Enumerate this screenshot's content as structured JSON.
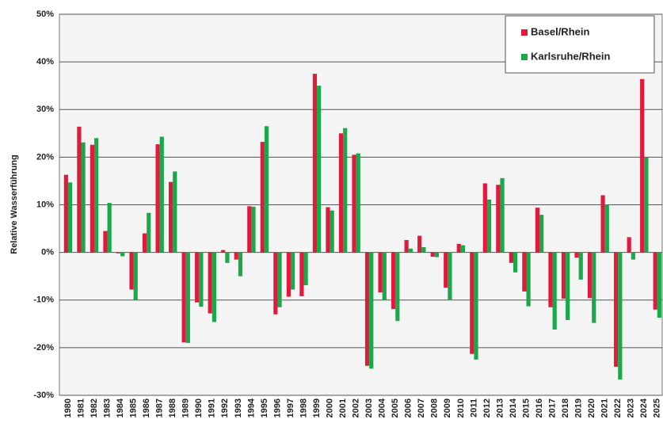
{
  "chart_data": {
    "type": "bar",
    "y_label": "Relative Wasserführung",
    "categories": [
      "1980",
      "1981",
      "1982",
      "1983",
      "1984",
      "1985",
      "1986",
      "1987",
      "1988",
      "1989",
      "1990",
      "1991",
      "1992",
      "1993",
      "1994",
      "1995",
      "1996",
      "1997",
      "1998",
      "1999",
      "2000",
      "2001",
      "2002",
      "2003",
      "2004",
      "2005",
      "2006",
      "2007",
      "2008",
      "2009",
      "2010",
      "2011",
      "2012",
      "2013",
      "2014",
      "2015",
      "2016",
      "2017",
      "2018",
      "2019",
      "2020",
      "2021",
      "2022",
      "2023",
      "2024",
      "2025"
    ],
    "series": [
      {
        "name": "Basel/Rhein",
        "color": "#e01a3c",
        "values": [
          16.3,
          26.4,
          22.6,
          4.5,
          -0.2,
          -7.8,
          4.0,
          22.7,
          14.8,
          -18.9,
          -10.5,
          -12.8,
          0.5,
          -1.5,
          9.7,
          23.2,
          -13.0,
          -9.3,
          -9.2,
          37.5,
          9.5,
          25.0,
          20.5,
          -23.8,
          -8.4,
          -11.9,
          2.6,
          3.5,
          -0.9,
          -7.4,
          1.8,
          -21.3,
          14.5,
          14.2,
          -2.2,
          -8.2,
          9.4,
          -11.5,
          -9.7,
          -1.1,
          -9.6,
          12.0,
          -24.0,
          3.2,
          36.4,
          -12.0
        ]
      },
      {
        "name": "Karlsruhe/Rhein",
        "color": "#1aa84a",
        "values": [
          14.7,
          23.1,
          24.0,
          10.4,
          -0.8,
          -10.0,
          8.3,
          24.3,
          17.0,
          -19.0,
          -11.4,
          -14.6,
          -2.2,
          -5.0,
          9.6,
          26.5,
          -11.5,
          -7.8,
          -6.9,
          35.0,
          8.8,
          26.1,
          20.8,
          -24.4,
          -10.0,
          -14.4,
          0.8,
          1.1,
          -1.0,
          -9.9,
          1.5,
          -22.5,
          11.1,
          15.6,
          -4.2,
          -11.3,
          7.9,
          -16.2,
          -14.2,
          -5.7,
          -14.8,
          10.0,
          -26.7,
          -1.5,
          19.9,
          -13.7
        ]
      }
    ],
    "ylim": [
      -30,
      50
    ],
    "yticks": [
      {
        "value": -30,
        "label": "-30%"
      },
      {
        "value": -20,
        "label": "-20%"
      },
      {
        "value": -10,
        "label": "-10%"
      },
      {
        "value": 0,
        "label": "0%"
      },
      {
        "value": 10,
        "label": "10%"
      },
      {
        "value": 20,
        "label": "20%"
      },
      {
        "value": 30,
        "label": "30%"
      },
      {
        "value": 40,
        "label": "40%"
      },
      {
        "value": 50,
        "label": "50%"
      }
    ],
    "grid": true
  }
}
